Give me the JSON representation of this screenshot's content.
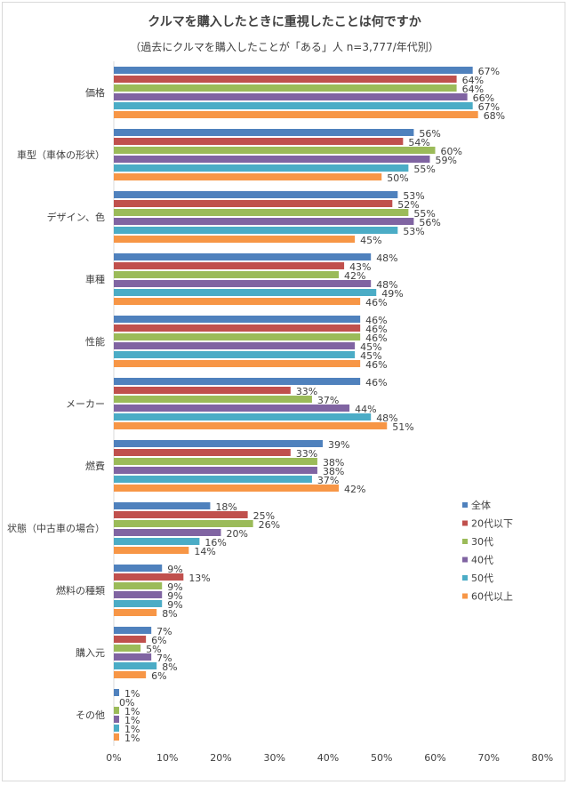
{
  "chart_data": {
    "type": "bar",
    "orientation": "horizontal",
    "title": "クルマを購入したときに重視したことは何ですか",
    "subtitle": "（過去にクルマを購入したことが「ある」人 n=3,777/年代別）",
    "categories": [
      "価格",
      "車型（車体の形状）",
      "デザイン、色",
      "車種",
      "性能",
      "メーカー",
      "燃費",
      "状態（中古車の場合）",
      "燃料の種類",
      "購入元",
      "その他"
    ],
    "series": [
      {
        "name": "全体",
        "color": "#4F81BD",
        "values": [
          67,
          56,
          53,
          48,
          46,
          46,
          39,
          18,
          9,
          7,
          1
        ]
      },
      {
        "name": "20代以下",
        "color": "#C0504D",
        "values": [
          64,
          54,
          52,
          43,
          46,
          33,
          33,
          25,
          13,
          6,
          0
        ]
      },
      {
        "name": "30代",
        "color": "#9BBB59",
        "values": [
          64,
          60,
          55,
          42,
          46,
          37,
          38,
          26,
          9,
          5,
          1
        ]
      },
      {
        "name": "40代",
        "color": "#8064A2",
        "values": [
          66,
          59,
          56,
          48,
          45,
          44,
          38,
          20,
          9,
          7,
          1
        ]
      },
      {
        "name": "50代",
        "color": "#4BACC6",
        "values": [
          67,
          55,
          53,
          49,
          45,
          48,
          37,
          16,
          9,
          8,
          1
        ]
      },
      {
        "name": "60代以上",
        "color": "#F79646",
        "values": [
          68,
          50,
          45,
          46,
          46,
          51,
          42,
          14,
          8,
          6,
          1
        ]
      }
    ],
    "xlim": [
      0,
      80
    ],
    "xticks": [
      "0%",
      "10%",
      "20%",
      "30%",
      "40%",
      "50%",
      "60%",
      "70%",
      "80%"
    ],
    "value_suffix": "%",
    "grid": false,
    "legend_position": "right"
  }
}
